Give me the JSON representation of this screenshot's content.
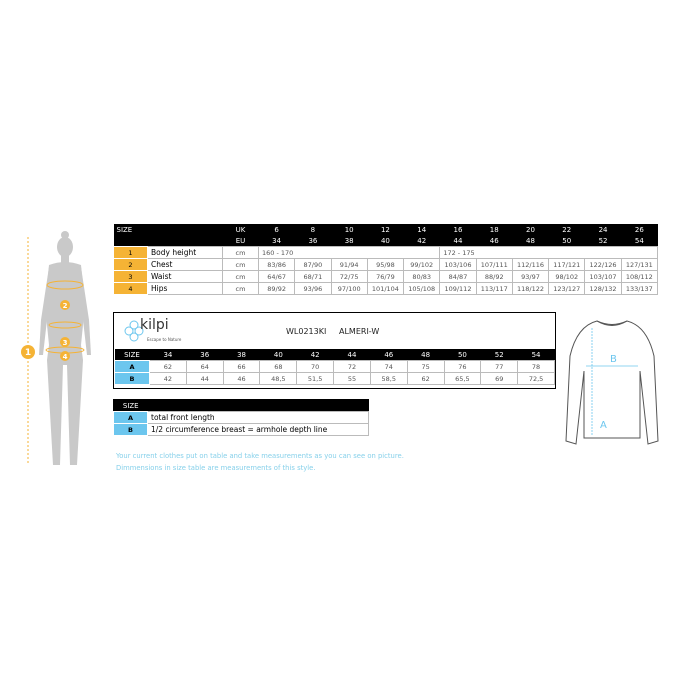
{
  "size_table": {
    "header": {
      "size": "SIZE",
      "uk": "UK",
      "eu": "EU",
      "uk_sizes": [
        "6",
        "8",
        "10",
        "12",
        "14",
        "16",
        "18",
        "20",
        "22",
        "24",
        "26"
      ],
      "eu_sizes": [
        "34",
        "36",
        "38",
        "40",
        "42",
        "44",
        "46",
        "48",
        "50",
        "52",
        "54"
      ]
    },
    "rows": [
      {
        "num": "1",
        "label": "Body height",
        "unit": "cm",
        "values": [
          "160 - 170",
          "",
          "",
          "",
          "",
          "172 - 175",
          "",
          "",
          "",
          "",
          ""
        ]
      },
      {
        "num": "2",
        "label": "Chest",
        "unit": "cm",
        "values": [
          "83/86",
          "87/90",
          "91/94",
          "95/98",
          "99/102",
          "103/106",
          "107/111",
          "112/116",
          "117/121",
          "122/126",
          "127/131"
        ]
      },
      {
        "num": "3",
        "label": "Waist",
        "unit": "cm",
        "values": [
          "64/67",
          "68/71",
          "72/75",
          "76/79",
          "80/83",
          "84/87",
          "88/92",
          "93/97",
          "98/102",
          "103/107",
          "108/112"
        ]
      },
      {
        "num": "4",
        "label": "Hips",
        "unit": "cm",
        "values": [
          "89/92",
          "93/96",
          "97/100",
          "101/104",
          "105/108",
          "109/112",
          "113/117",
          "118/122",
          "123/127",
          "128/132",
          "133/137"
        ]
      }
    ]
  },
  "product": {
    "brand": "kilpi",
    "tagline": "Escape to Nature",
    "code": "WL0213KI",
    "name": "ALMERI-W",
    "size_label": "SIZE",
    "sizes": [
      "34",
      "36",
      "38",
      "40",
      "42",
      "44",
      "46",
      "48",
      "50",
      "52",
      "54"
    ],
    "rows": [
      {
        "label": "A",
        "values": [
          "62",
          "64",
          "66",
          "68",
          "70",
          "72",
          "74",
          "75",
          "76",
          "77",
          "78"
        ]
      },
      {
        "label": "B",
        "values": [
          "42",
          "44",
          "46",
          "48,5",
          "51,5",
          "55",
          "58,5",
          "62",
          "65,5",
          "69",
          "72,5"
        ]
      }
    ]
  },
  "legend": {
    "size_label": "SIZE",
    "rows": [
      {
        "label": "A",
        "desc": "total front length"
      },
      {
        "label": "B",
        "desc": "1/2 circumference breast = armhole depth line"
      }
    ]
  },
  "notes": [
    "Your current clothes put on table and take measurements as you can see on picture.",
    "Dimmensions in size table are measurements of this style."
  ],
  "figure": {
    "markers": [
      "1",
      "2",
      "3",
      "4"
    ],
    "shirt_labels": [
      "B",
      "A"
    ]
  },
  "colors": {
    "orange": "#f5b335",
    "blue": "#6cc6ee",
    "note": "#86d0ea"
  }
}
